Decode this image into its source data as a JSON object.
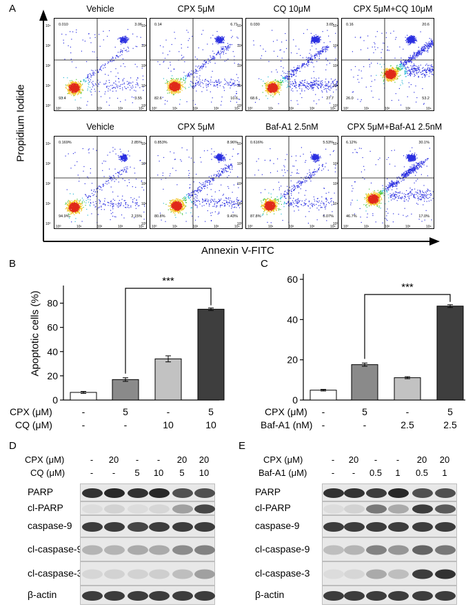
{
  "panels": {
    "A": "A",
    "B": "B",
    "C": "C",
    "D": "D",
    "E": "E"
  },
  "panelA": {
    "y_axis": "Propidium Iodide",
    "x_axis": "Annexin V-FITC",
    "row1": [
      {
        "title": "Vehicle",
        "ul": "0.010",
        "ur": "3.06",
        "ll": "93.4",
        "lr": "3.55"
      },
      {
        "title": "CPX 5μM",
        "ul": "0.14",
        "ur": "6.71",
        "ll": "82.6",
        "lr": "10.6"
      },
      {
        "title": "CQ 10μM",
        "ul": "0.030",
        "ur": "3.65",
        "ll": "68.6",
        "lr": "27.7"
      },
      {
        "title": "CPX 5μM+CQ 10μM",
        "ul": "0.16",
        "ur": "20.6",
        "ll": "26.0",
        "lr": "53.2"
      }
    ],
    "row2": [
      {
        "title": "Vehicle",
        "ul": "0.169%",
        "ur": "2.85%",
        "ll": "94.9%",
        "lr": "2.15%"
      },
      {
        "title": "CPX 5μM",
        "ul": "0.853%",
        "ur": "8.96%",
        "ll": "80.8%",
        "lr": "9.43%"
      },
      {
        "title": "Baf-A1 2.5nM",
        "ul": "0.616%",
        "ur": "5.53%",
        "ll": "87.8%",
        "lr": "6.07%"
      },
      {
        "title": "CPX 5μM+Baf-A1 2.5nM",
        "ul": "6.12%",
        "ur": "30.1%",
        "ll": "46.7%",
        "lr": "17.0%"
      }
    ],
    "ticks": [
      "10⁰",
      "10¹",
      "10²",
      "10³",
      "10⁴"
    ]
  },
  "chart_data": [
    {
      "type": "bar",
      "ylabel": "Apoptotic cells (%)",
      "ylim": [
        0,
        90
      ],
      "yticks": [
        "0",
        "20",
        "40",
        "60",
        "80"
      ],
      "values": [
        6.3,
        16.9,
        34.0,
        75.0
      ],
      "errors": [
        0.8,
        1.5,
        2.5,
        1.0
      ],
      "colors": [
        "#ffffff",
        "#8a8a8a",
        "#c2c2c2",
        "#3e3e3e"
      ],
      "row1_label": "CPX (μM)",
      "row1": [
        "-",
        "5",
        "-",
        "5"
      ],
      "row2_label": "CQ (μM)",
      "row2": [
        "-",
        "-",
        "10",
        "10"
      ],
      "significance": "***"
    },
    {
      "type": "bar",
      "ylabel": "",
      "ylim": [
        0,
        60
      ],
      "yticks": [
        "0",
        "20",
        "40",
        "60"
      ],
      "values": [
        4.9,
        17.6,
        11.1,
        46.7
      ],
      "errors": [
        0.4,
        0.8,
        0.5,
        0.7
      ],
      "colors": [
        "#ffffff",
        "#8a8a8a",
        "#c2c2c2",
        "#3e3e3e"
      ],
      "row1_label": "CPX (μM)",
      "row1": [
        "-",
        "5",
        "-",
        "5"
      ],
      "row2_label": "Baf-A1 (nM)",
      "row2": [
        "-",
        "-",
        "2.5",
        "2.5"
      ],
      "significance": "***"
    }
  ],
  "panelD": {
    "row1_label": "CPX (μM)",
    "row1": [
      "-",
      "20",
      "-",
      "-",
      "20",
      "20"
    ],
    "row2_label": "CQ (μM)",
    "row2": [
      "-",
      "-",
      "5",
      "10",
      "5",
      "10"
    ],
    "blots": [
      "PARP",
      "cl-PARP",
      "caspase-9",
      "cl-caspase-9",
      "cl-caspase-3",
      "β-actin"
    ]
  },
  "panelE": {
    "row1_label": "CPX (μM)",
    "row1": [
      "-",
      "20",
      "-",
      "-",
      "20",
      "20"
    ],
    "row2_label": "Baf-A1 (μM)",
    "row2": [
      "-",
      "-",
      "0.5",
      "1",
      "0.5",
      "1"
    ],
    "blots": [
      "PARP",
      "cl-PARP",
      "caspase-9",
      "cl-caspase-9",
      "cl-caspase-3",
      "β-actin"
    ]
  }
}
